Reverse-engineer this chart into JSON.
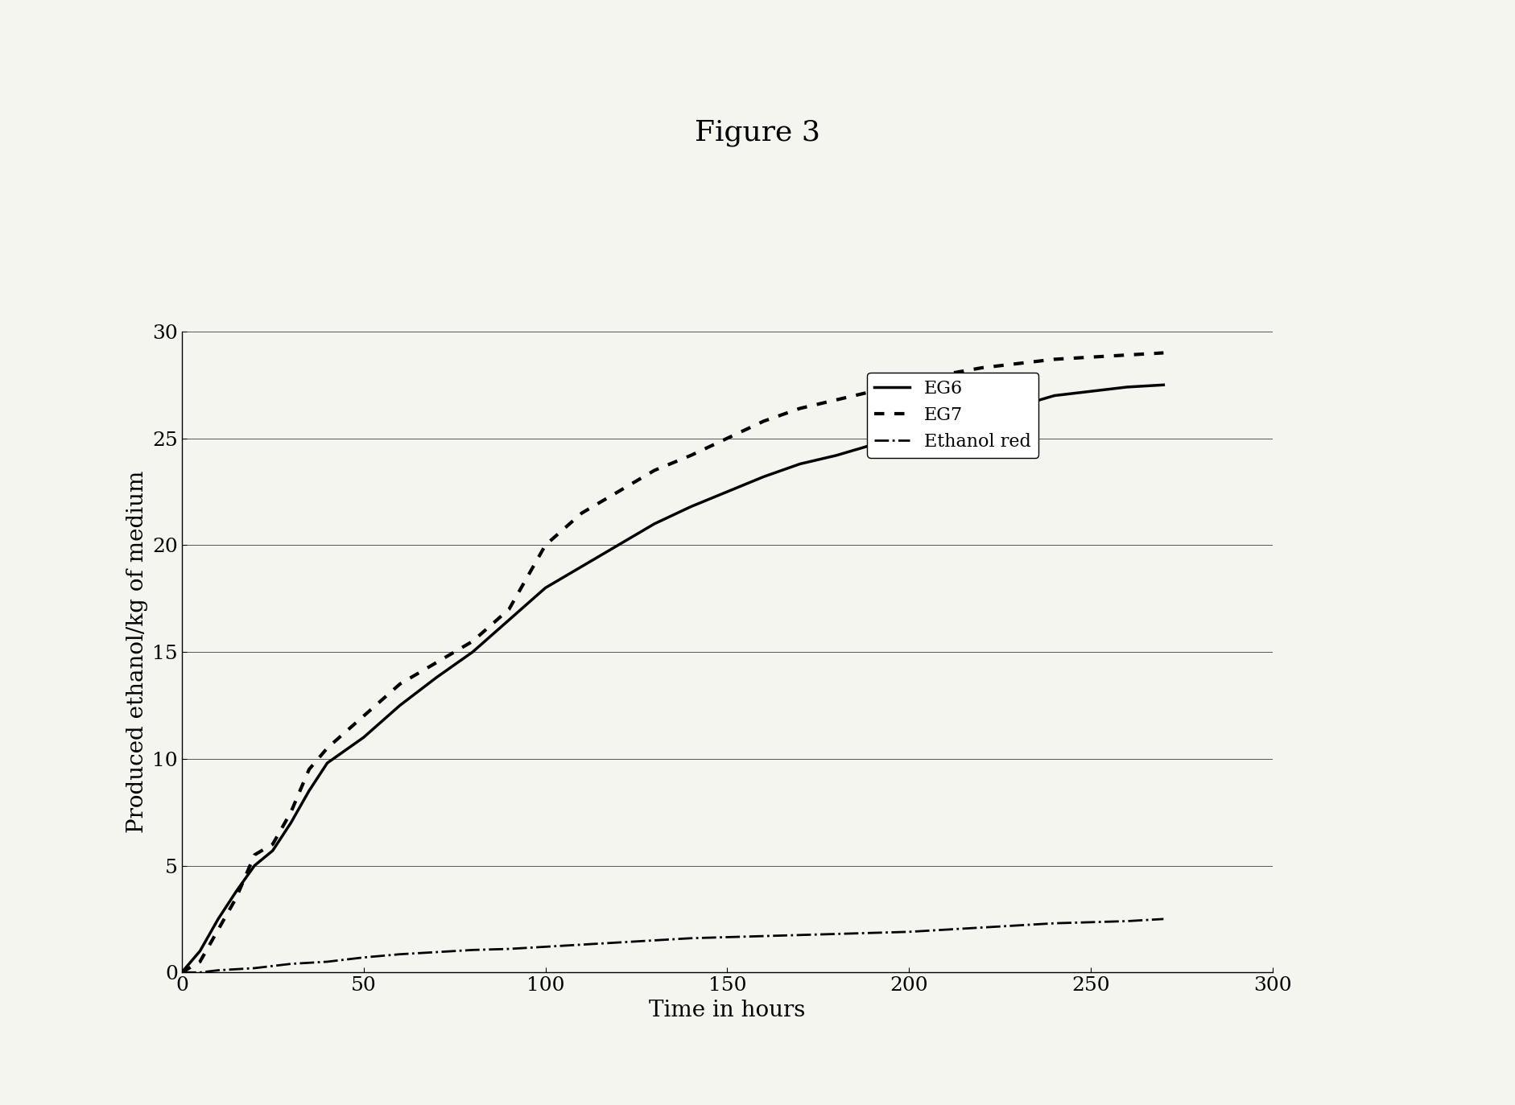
{
  "title": "Figure 3",
  "xlabel": "Time in hours",
  "ylabel": "Produced ethanol/kg of medium",
  "xlim": [
    0,
    300
  ],
  "ylim": [
    0,
    30
  ],
  "xticks": [
    0,
    50,
    100,
    150,
    200,
    250,
    300
  ],
  "yticks": [
    0,
    5,
    10,
    15,
    20,
    25,
    30
  ],
  "background_color": "#f5f5f0",
  "plot_bg_color": "#f5f5f0",
  "title_fontsize": 26,
  "axis_label_fontsize": 20,
  "tick_fontsize": 18,
  "legend_fontsize": 16,
  "series": {
    "EG6": {
      "x": [
        0,
        5,
        10,
        15,
        20,
        25,
        30,
        35,
        40,
        50,
        60,
        70,
        80,
        90,
        100,
        110,
        120,
        130,
        140,
        150,
        160,
        170,
        180,
        190,
        200,
        210,
        220,
        230,
        240,
        250,
        260,
        270
      ],
      "y": [
        0,
        1.0,
        2.5,
        3.8,
        5.0,
        5.7,
        7.0,
        8.5,
        9.8,
        11.0,
        12.5,
        13.8,
        15.0,
        16.5,
        18.0,
        19.0,
        20.0,
        21.0,
        21.8,
        22.5,
        23.2,
        23.8,
        24.2,
        24.7,
        25.0,
        25.5,
        26.0,
        26.5,
        27.0,
        27.2,
        27.4,
        27.5
      ],
      "color": "#000000",
      "linestyle": "solid",
      "linewidth": 2.5
    },
    "EG7": {
      "x": [
        0,
        5,
        10,
        15,
        20,
        25,
        30,
        35,
        40,
        50,
        60,
        70,
        80,
        90,
        100,
        110,
        120,
        130,
        140,
        150,
        160,
        170,
        180,
        190,
        200,
        210,
        220,
        230,
        240,
        250,
        260,
        270
      ],
      "y": [
        0,
        0.5,
        2.0,
        3.5,
        5.5,
        6.0,
        7.5,
        9.5,
        10.5,
        12.0,
        13.5,
        14.5,
        15.5,
        17.0,
        20.0,
        21.5,
        22.5,
        23.5,
        24.2,
        25.0,
        25.8,
        26.4,
        26.8,
        27.2,
        27.7,
        28.0,
        28.3,
        28.5,
        28.7,
        28.8,
        28.9,
        29.0
      ],
      "color": "#000000",
      "linestyle": "dotted",
      "linewidth": 3.0
    },
    "Ethanol red": {
      "x": [
        0,
        5,
        10,
        15,
        20,
        25,
        30,
        40,
        50,
        60,
        70,
        80,
        90,
        100,
        110,
        120,
        130,
        140,
        150,
        160,
        170,
        180,
        190,
        200,
        210,
        220,
        230,
        240,
        250,
        260,
        270
      ],
      "y": [
        0,
        0.0,
        0.1,
        0.15,
        0.2,
        0.3,
        0.4,
        0.5,
        0.7,
        0.85,
        0.95,
        1.05,
        1.1,
        1.2,
        1.3,
        1.4,
        1.5,
        1.6,
        1.65,
        1.7,
        1.75,
        1.8,
        1.85,
        1.9,
        2.0,
        2.1,
        2.2,
        2.3,
        2.35,
        2.4,
        2.5
      ],
      "color": "#000000",
      "linestyle": "dashdot",
      "linewidth": 2.0
    }
  }
}
